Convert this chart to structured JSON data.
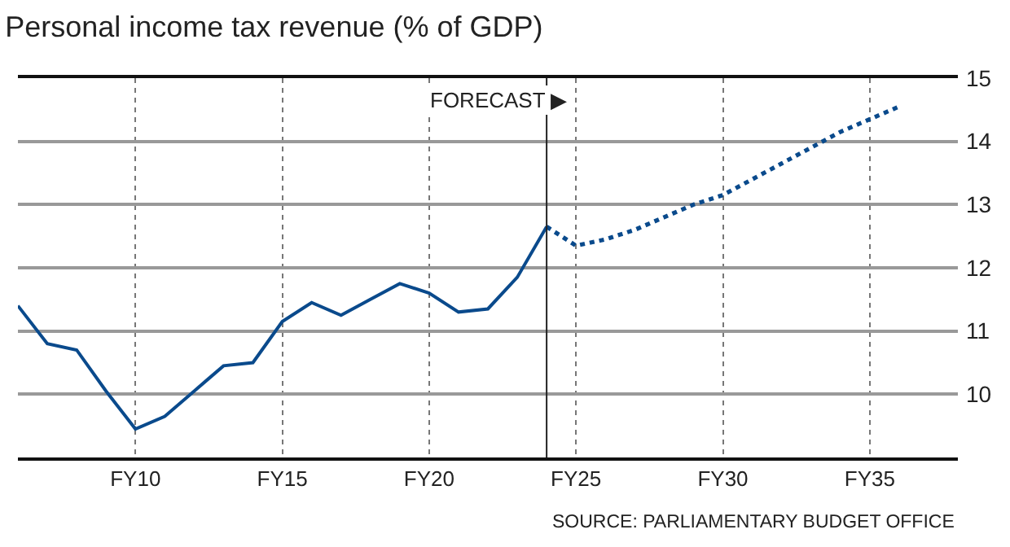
{
  "chart_data": {
    "type": "line",
    "title": "Personal income tax revenue (% of GDP)",
    "categories": [
      null,
      null,
      null,
      null,
      "FY10",
      null,
      null,
      null,
      null,
      "FY15",
      null,
      null,
      null,
      null,
      "FY20",
      null,
      null,
      null,
      null,
      "FY25",
      null,
      null,
      null,
      null,
      "FY30",
      null,
      null,
      null,
      null,
      "FY35",
      null,
      null,
      null
    ],
    "ylim": [
      9,
      15
    ],
    "yticks": [
      10,
      11,
      12,
      13,
      14,
      15
    ],
    "series": [
      {
        "color": "#0a4a8c",
        "line_style": "solid",
        "values": [
          11.4,
          10.8,
          10.7,
          10.05,
          9.45,
          9.65,
          10.05,
          10.45,
          10.5,
          11.15,
          11.45,
          11.25,
          11.5,
          11.75,
          11.6,
          11.3,
          11.35,
          11.85,
          12.65,
          null,
          null,
          null,
          null,
          null,
          null,
          null,
          null,
          null,
          null,
          null,
          null,
          null,
          null
        ]
      },
      {
        "color": "#0a4a8c",
        "line_style": "dotted",
        "values": [
          null,
          null,
          null,
          null,
          null,
          null,
          null,
          null,
          null,
          null,
          null,
          null,
          null,
          null,
          null,
          null,
          null,
          null,
          12.65,
          12.35,
          12.45,
          12.6,
          12.8,
          13.0,
          13.15,
          13.4,
          13.65,
          13.9,
          14.15,
          14.35,
          14.55,
          null,
          null
        ]
      }
    ],
    "grid": true,
    "legend": false,
    "marker": "none",
    "annotations": [
      "FORECAST ▶",
      "SOURCE: PARLIAMENTARY BUDGET OFFICE"
    ]
  }
}
